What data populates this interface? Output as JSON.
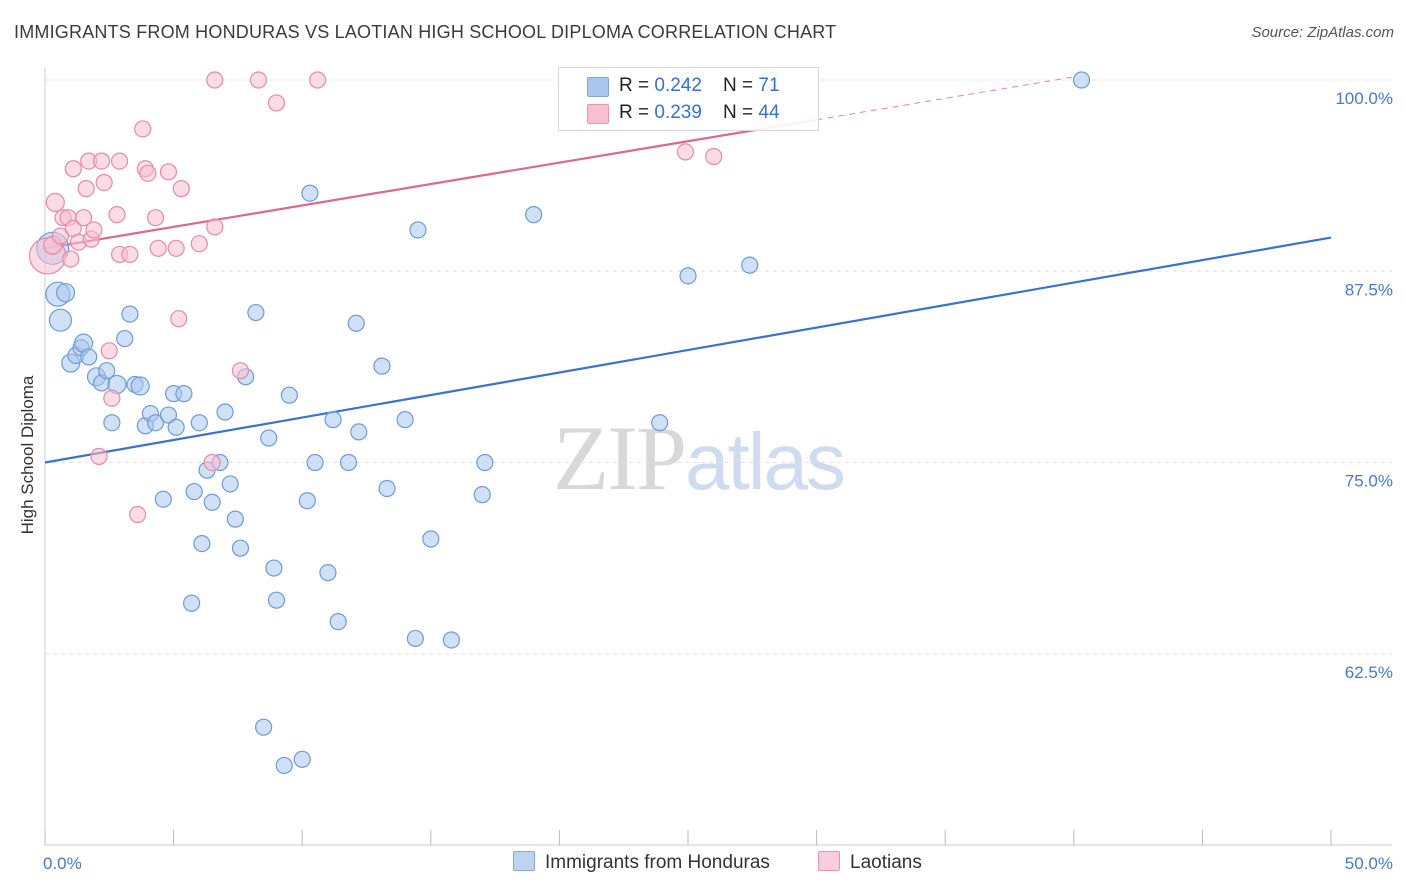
{
  "header": {
    "title": "IMMIGRANTS FROM HONDURAS VS LAOTIAN HIGH SCHOOL DIPLOMA CORRELATION CHART",
    "source": "Source: ZipAtlas.com"
  },
  "watermark": {
    "zip": "ZIP",
    "atlas": "atlas"
  },
  "legend": {
    "rows": [
      {
        "r_label": "R = ",
        "r_value": "0.242",
        "n_label": "N = ",
        "n_value": "71",
        "color": "#a9c6ee",
        "border": "#7fa7dd"
      },
      {
        "r_label": "R = ",
        "r_value": "0.239",
        "n_label": "N = ",
        "n_value": "44",
        "color": "#f7bfd0",
        "border": "#e993b0"
      }
    ]
  },
  "bottom_legend": {
    "items": [
      {
        "label": "Immigrants from Honduras",
        "color": "#bcd3f2",
        "border": "#7fa7dd"
      },
      {
        "label": "Laotians",
        "color": "#f9cddb",
        "border": "#e993b0"
      }
    ]
  },
  "chart_data": {
    "type": "scatter",
    "title": "IMMIGRANTS FROM HONDURAS VS LAOTIAN HIGH SCHOOL DIPLOMA CORRELATION CHART",
    "xlabel": "",
    "ylabel": "High School Diploma",
    "xlim": [
      0,
      50
    ],
    "ylim": [
      50,
      100
    ],
    "x_tick_labels": [
      "0.0%",
      "50.0%"
    ],
    "y_ticks": [
      100,
      87.5,
      75,
      62.5
    ],
    "y_tick_labels": [
      "100.0%",
      "87.5%",
      "75.0%",
      "62.5%"
    ],
    "grid": true,
    "legend_position": "top-center",
    "series": [
      {
        "name": "Immigrants from Honduras",
        "color": "#a9c6ee",
        "stroke": "#6f9bd8",
        "line_color": "#3a72cf",
        "trend": {
          "x": [
            0,
            50
          ],
          "y": [
            75.0,
            89.7
          ]
        },
        "points": [
          [
            0.3,
            89.0,
            16
          ],
          [
            0.5,
            86.0,
            12
          ],
          [
            0.6,
            84.3,
            11
          ],
          [
            0.8,
            86.1,
            9
          ],
          [
            1.0,
            81.5,
            9
          ],
          [
            1.2,
            82.0,
            8
          ],
          [
            1.4,
            82.5,
            8
          ],
          [
            1.5,
            82.8,
            9
          ],
          [
            1.7,
            81.9,
            8
          ],
          [
            2.0,
            80.6,
            9
          ],
          [
            2.2,
            80.2,
            8
          ],
          [
            2.4,
            81.0,
            8
          ],
          [
            2.6,
            77.6,
            8
          ],
          [
            2.8,
            80.1,
            9
          ],
          [
            3.1,
            83.1,
            8
          ],
          [
            3.3,
            84.7,
            8
          ],
          [
            3.5,
            80.1,
            8
          ],
          [
            3.7,
            80.0,
            9
          ],
          [
            3.9,
            77.4,
            8
          ],
          [
            4.1,
            78.2,
            8
          ],
          [
            4.3,
            77.6,
            8
          ],
          [
            4.6,
            72.6,
            8
          ],
          [
            4.8,
            78.1,
            8
          ],
          [
            5.0,
            79.5,
            8
          ],
          [
            5.1,
            77.3,
            8
          ],
          [
            5.4,
            79.5,
            8
          ],
          [
            5.8,
            73.1,
            8
          ],
          [
            6.0,
            77.6,
            8
          ],
          [
            6.1,
            69.7,
            8
          ],
          [
            6.3,
            74.5,
            8
          ],
          [
            6.5,
            72.4,
            8
          ],
          [
            6.8,
            75.0,
            8
          ],
          [
            7.0,
            78.3,
            8
          ],
          [
            7.2,
            73.6,
            8
          ],
          [
            7.4,
            71.3,
            8
          ],
          [
            7.6,
            69.4,
            8
          ],
          [
            7.8,
            80.6,
            8
          ],
          [
            8.2,
            84.8,
            8
          ],
          [
            8.5,
            57.7,
            8
          ],
          [
            8.7,
            76.6,
            8
          ],
          [
            8.9,
            68.1,
            8
          ],
          [
            9.0,
            66.0,
            8
          ],
          [
            9.3,
            55.2,
            8
          ],
          [
            9.5,
            79.4,
            8
          ],
          [
            10.0,
            55.6,
            8
          ],
          [
            10.2,
            72.5,
            8
          ],
          [
            10.3,
            92.6,
            8
          ],
          [
            10.5,
            75.0,
            8
          ],
          [
            11.0,
            67.8,
            8
          ],
          [
            11.2,
            77.8,
            8
          ],
          [
            11.4,
            64.6,
            8
          ],
          [
            11.8,
            75.0,
            8
          ],
          [
            12.1,
            84.1,
            8
          ],
          [
            12.2,
            77.0,
            8
          ],
          [
            13.1,
            81.3,
            8
          ],
          [
            13.3,
            73.3,
            8
          ],
          [
            14.0,
            77.8,
            8
          ],
          [
            14.5,
            90.2,
            8
          ],
          [
            14.4,
            63.5,
            8
          ],
          [
            15.0,
            70.0,
            8
          ],
          [
            15.8,
            63.4,
            8
          ],
          [
            17.0,
            72.9,
            8
          ],
          [
            17.1,
            75.0,
            8
          ],
          [
            19.0,
            91.2,
            8
          ],
          [
            23.9,
            77.6,
            8
          ],
          [
            25.1,
            100.0,
            8
          ],
          [
            25.0,
            87.2,
            8
          ],
          [
            27.4,
            87.9,
            8
          ],
          [
            28.2,
            100.0,
            8
          ],
          [
            40.3,
            100.0,
            8
          ],
          [
            5.7,
            65.8,
            8
          ]
        ]
      },
      {
        "name": "Laotians",
        "color": "#f7bfd0",
        "stroke": "#e58aa8",
        "line_color": "#e0668f",
        "trend": {
          "x": [
            0,
            30
          ],
          "y": [
            89.0,
            97.4
          ]
        },
        "trend_dashed": {
          "x": [
            30,
            40
          ],
          "y": [
            97.4,
            100.2
          ]
        },
        "points": [
          [
            0.1,
            88.5,
            18
          ],
          [
            0.3,
            89.2,
            9
          ],
          [
            0.4,
            92.0,
            9
          ],
          [
            0.6,
            89.8,
            8
          ],
          [
            0.7,
            91.0,
            8
          ],
          [
            0.9,
            91.0,
            8
          ],
          [
            1.0,
            88.3,
            8
          ],
          [
            1.1,
            90.3,
            8
          ],
          [
            1.1,
            94.2,
            8
          ],
          [
            1.3,
            89.4,
            8
          ],
          [
            1.5,
            91.0,
            8
          ],
          [
            1.6,
            92.9,
            8
          ],
          [
            1.7,
            94.7,
            8
          ],
          [
            1.8,
            89.6,
            8
          ],
          [
            1.9,
            90.2,
            8
          ],
          [
            2.1,
            75.4,
            8
          ],
          [
            2.2,
            94.7,
            8
          ],
          [
            2.3,
            93.3,
            8
          ],
          [
            2.5,
            82.3,
            8
          ],
          [
            2.6,
            79.2,
            8
          ],
          [
            2.8,
            91.2,
            8
          ],
          [
            2.9,
            94.7,
            8
          ],
          [
            2.9,
            88.6,
            8
          ],
          [
            3.3,
            88.6,
            8
          ],
          [
            3.6,
            71.6,
            8
          ],
          [
            3.8,
            96.8,
            8
          ],
          [
            3.9,
            94.2,
            8
          ],
          [
            4.0,
            93.9,
            8
          ],
          [
            4.3,
            91.0,
            8
          ],
          [
            4.4,
            89.0,
            8
          ],
          [
            4.8,
            94.0,
            8
          ],
          [
            5.1,
            89.0,
            8
          ],
          [
            5.2,
            84.4,
            8
          ],
          [
            5.3,
            92.9,
            8
          ],
          [
            6.0,
            89.3,
            8
          ],
          [
            6.5,
            75.0,
            8
          ],
          [
            6.6,
            90.4,
            8
          ],
          [
            7.6,
            81.0,
            8
          ],
          [
            6.6,
            100.0,
            8
          ],
          [
            8.3,
            100.0,
            8
          ],
          [
            9.0,
            98.5,
            8
          ],
          [
            10.6,
            100.0,
            8
          ],
          [
            24.9,
            95.3,
            8
          ],
          [
            26.0,
            95.0,
            8
          ]
        ]
      }
    ]
  }
}
